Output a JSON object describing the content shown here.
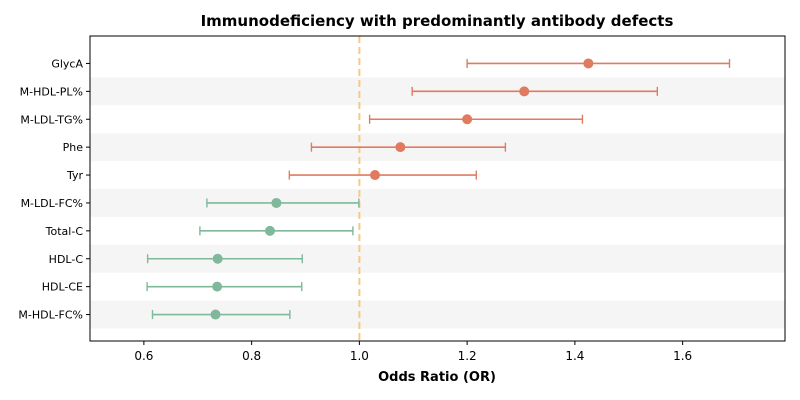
{
  "chart_data": {
    "type": "forest",
    "title": "Immunodeficiency with predominantly antibody defects",
    "xlabel": "Odds Ratio (OR)",
    "ylabel": "",
    "xlim": [
      0.5,
      1.79
    ],
    "xticks": [
      0.6,
      0.8,
      1.0,
      1.2,
      1.4,
      1.6
    ],
    "xtick_labels": [
      "0.6",
      "0.8",
      "1.0",
      "1.2",
      "1.4",
      "1.6"
    ],
    "reference_line": 1.0,
    "colors": {
      "increase": "#e07b5f",
      "decrease": "#7fb89a",
      "reference": "#f5c98a",
      "band": "#f5f5f5"
    },
    "rows": [
      {
        "label": "GlycA",
        "or": 1.425,
        "lo": 1.2,
        "hi": 1.687,
        "group": "increase"
      },
      {
        "label": "M-HDL-PL%",
        "or": 1.306,
        "lo": 1.098,
        "hi": 1.553,
        "group": "increase"
      },
      {
        "label": "M-LDL-TG%",
        "or": 1.2,
        "lo": 1.019,
        "hi": 1.414,
        "group": "increase"
      },
      {
        "label": "Phe",
        "or": 1.076,
        "lo": 0.911,
        "hi": 1.271,
        "group": "increase"
      },
      {
        "label": "Tyr",
        "or": 1.029,
        "lo": 0.87,
        "hi": 1.217,
        "group": "increase"
      },
      {
        "label": "M-LDL-FC%",
        "or": 0.846,
        "lo": 0.717,
        "hi": 0.999,
        "group": "decrease"
      },
      {
        "label": "Total-C",
        "or": 0.834,
        "lo": 0.704,
        "hi": 0.988,
        "group": "decrease"
      },
      {
        "label": "HDL-C",
        "or": 0.737,
        "lo": 0.607,
        "hi": 0.894,
        "group": "decrease"
      },
      {
        "label": "HDL-CE",
        "or": 0.736,
        "lo": 0.606,
        "hi": 0.893,
        "group": "decrease"
      },
      {
        "label": "M-HDL-FC%",
        "or": 0.733,
        "lo": 0.616,
        "hi": 0.871,
        "group": "decrease"
      }
    ]
  }
}
